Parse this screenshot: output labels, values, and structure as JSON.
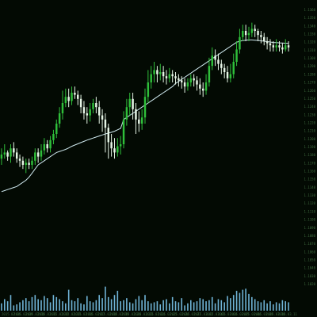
{
  "chart_data": {
    "type": "candlestick",
    "colors": {
      "background": "#030a03",
      "up": "#2fbf3a",
      "down": "#e6f5e6",
      "ma_line": "#cfe9ef",
      "volume": "#6fb3d6",
      "tick_text": "#3f6b3f"
    },
    "price_ylim": [
      0,
      100
    ],
    "volume_ylim": [
      0,
      100
    ],
    "candles": [
      [
        33,
        35,
        38,
        30
      ],
      [
        35,
        36,
        40,
        33
      ],
      [
        36,
        34,
        37,
        32
      ],
      [
        34,
        38,
        40,
        31
      ],
      [
        38,
        36,
        41,
        34
      ],
      [
        36,
        33,
        38,
        31
      ],
      [
        33,
        32,
        35,
        29
      ],
      [
        32,
        30,
        34,
        28
      ],
      [
        30,
        31,
        33,
        26
      ],
      [
        31,
        30,
        33,
        28
      ],
      [
        30,
        32,
        34,
        28
      ],
      [
        32,
        36,
        38,
        30
      ],
      [
        36,
        34,
        38,
        31
      ],
      [
        34,
        37,
        40,
        32
      ],
      [
        37,
        40,
        43,
        35
      ],
      [
        40,
        38,
        42,
        36
      ],
      [
        38,
        42,
        44,
        36
      ],
      [
        42,
        45,
        47,
        40
      ],
      [
        45,
        50,
        52,
        43
      ],
      [
        50,
        55,
        58,
        48
      ],
      [
        55,
        60,
        66,
        52
      ],
      [
        60,
        63,
        67,
        58
      ],
      [
        63,
        61,
        67,
        58
      ],
      [
        61,
        65,
        68,
        59
      ],
      [
        65,
        64,
        68,
        62
      ],
      [
        64,
        62,
        66,
        59
      ],
      [
        62,
        58,
        64,
        55
      ],
      [
        58,
        55,
        61,
        52
      ],
      [
        55,
        54,
        58,
        50
      ],
      [
        54,
        57,
        60,
        51
      ],
      [
        57,
        60,
        62,
        55
      ],
      [
        60,
        58,
        63,
        55
      ],
      [
        58,
        54,
        61,
        50
      ],
      [
        54,
        52,
        57,
        46
      ],
      [
        52,
        48,
        55,
        36
      ],
      [
        48,
        41,
        50,
        33
      ],
      [
        41,
        38,
        45,
        34
      ],
      [
        38,
        36,
        43,
        33
      ],
      [
        36,
        39,
        43,
        34
      ],
      [
        39,
        40,
        44,
        35
      ],
      [
        40,
        52,
        56,
        38
      ],
      [
        52,
        58,
        62,
        49
      ],
      [
        58,
        62,
        65,
        54
      ],
      [
        62,
        57,
        65,
        52
      ],
      [
        57,
        52,
        60,
        45
      ],
      [
        52,
        50,
        56,
        46
      ],
      [
        50,
        53,
        57,
        47
      ],
      [
        53,
        63,
        67,
        50
      ],
      [
        63,
        70,
        76,
        60
      ],
      [
        70,
        74,
        78,
        67
      ],
      [
        74,
        76,
        80,
        70
      ],
      [
        76,
        74,
        78,
        70
      ],
      [
        74,
        75,
        79,
        71
      ],
      [
        75,
        73,
        78,
        70
      ],
      [
        73,
        72,
        76,
        69
      ],
      [
        72,
        74,
        77,
        70
      ],
      [
        74,
        73,
        76,
        70
      ],
      [
        73,
        72,
        75,
        69
      ],
      [
        72,
        71,
        74,
        68
      ],
      [
        71,
        70,
        73,
        67
      ],
      [
        70,
        68,
        72,
        65
      ],
      [
        68,
        70,
        72,
        66
      ],
      [
        70,
        72,
        74,
        68
      ],
      [
        72,
        71,
        74,
        68
      ],
      [
        71,
        69,
        73,
        66
      ],
      [
        69,
        67,
        72,
        64
      ],
      [
        67,
        66,
        70,
        63
      ],
      [
        66,
        70,
        74,
        64
      ],
      [
        70,
        78,
        82,
        68
      ],
      [
        78,
        83,
        87,
        76
      ],
      [
        83,
        81,
        86,
        78
      ],
      [
        81,
        79,
        84,
        76
      ],
      [
        79,
        77,
        81,
        74
      ],
      [
        77,
        75,
        79,
        72
      ],
      [
        75,
        72,
        78,
        70
      ],
      [
        72,
        74,
        79,
        70
      ],
      [
        74,
        80,
        84,
        72
      ],
      [
        80,
        86,
        90,
        78
      ],
      [
        86,
        92,
        96,
        84
      ],
      [
        92,
        95,
        98,
        90
      ],
      [
        95,
        93,
        98,
        90
      ],
      [
        93,
        94,
        97,
        90
      ],
      [
        94,
        96,
        99,
        92
      ],
      [
        96,
        95,
        98,
        92
      ],
      [
        95,
        93,
        96,
        90
      ],
      [
        93,
        92,
        95,
        89
      ],
      [
        92,
        90,
        94,
        88
      ],
      [
        90,
        89,
        92,
        86
      ],
      [
        89,
        88,
        91,
        85
      ],
      [
        88,
        87,
        90,
        85
      ],
      [
        87,
        88,
        91,
        85
      ],
      [
        88,
        87,
        90,
        85
      ],
      [
        87,
        86,
        89,
        84
      ],
      [
        86,
        88,
        91,
        85
      ],
      [
        88,
        87,
        90,
        85
      ]
    ],
    "ma": [
      17,
      17.5,
      18,
      18.5,
      19,
      19.5,
      20.5,
      21.5,
      22.5,
      24,
      26,
      28,
      30,
      31,
      32,
      33,
      34,
      35,
      36,
      36.5,
      37,
      37.5,
      38.2,
      39,
      39.6,
      40.2,
      40.8,
      41.4,
      42,
      42.5,
      43,
      43.5,
      44,
      44.5,
      45,
      45.4,
      45.8,
      46.3,
      47,
      47.7,
      52,
      53,
      54,
      55,
      56,
      57,
      58,
      59,
      60,
      61,
      62,
      63,
      64,
      65,
      66,
      67,
      68,
      69.5,
      70.5,
      71.5,
      72.5,
      73.5,
      74.5,
      75.5,
      76.5,
      77.5,
      78.5,
      79.5,
      80.5,
      81.5,
      82.5,
      83.5,
      84.5,
      85.5,
      86.5,
      87.5,
      88.5,
      89.5,
      90,
      90.3,
      90.5,
      90.6,
      90.6,
      90.5,
      90.4,
      90.2,
      90,
      89.8,
      89.6,
      89.4,
      89.3,
      89.2,
      89.1,
      89,
      89
    ],
    "volume": [
      14,
      22,
      18,
      30,
      10,
      12,
      16,
      20,
      24,
      18,
      26,
      30,
      22,
      20,
      28,
      24,
      16,
      30,
      26,
      22,
      18,
      14,
      40,
      20,
      18,
      24,
      14,
      12,
      28,
      18,
      16,
      20,
      30,
      24,
      46,
      26,
      22,
      30,
      38,
      18,
      20,
      24,
      16,
      14,
      22,
      28,
      20,
      30,
      18,
      14,
      16,
      18,
      12,
      20,
      22,
      14,
      26,
      18,
      16,
      24,
      10,
      14,
      20,
      16,
      18,
      24,
      22,
      18,
      20,
      26,
      14,
      22,
      20,
      16,
      28,
      24,
      30,
      38,
      34,
      40,
      42,
      32,
      26,
      22,
      18,
      16,
      20,
      14,
      18,
      12,
      16,
      14,
      20,
      18,
      16
    ],
    "xtick_labels": [
      "2015.02.06",
      "2015.02.09",
      "2015.02.10",
      "2015.02.11",
      "2015.02.12",
      "2015.02.13",
      "2015.02.16",
      "2015.02.17",
      "2015.02.18",
      "2015.02.19",
      "2015.02.20",
      "2015.02.23",
      "2015.02.24",
      "2015.02.25",
      "2015.02.26",
      "2015.02.27",
      "2015.03.02",
      "2015.03.03",
      "2015.03.04",
      "2015.03.05",
      "2015.03.06",
      "2015.03.09",
      "2015.03.10",
      "2015.03.11"
    ],
    "ytick_labels": [
      "1.1360",
      "1.1350",
      "1.1340",
      "1.1330",
      "1.1320",
      "1.1310",
      "1.1300",
      "1.1290",
      "1.1280",
      "1.1270",
      "1.1260",
      "1.1250",
      "1.1240",
      "1.1230",
      "1.1220",
      "1.1210",
      "1.1200",
      "1.1190",
      "1.1180",
      "1.1170",
      "1.1160",
      "1.1150",
      "1.1140",
      "1.1130",
      "1.1120",
      "1.1110",
      "1.1100",
      "1.1090",
      "1.1080",
      "1.1070",
      "1.1060",
      "1.1050",
      "1.1040",
      "1.1030",
      "1.1020"
    ],
    "grid": false
  }
}
